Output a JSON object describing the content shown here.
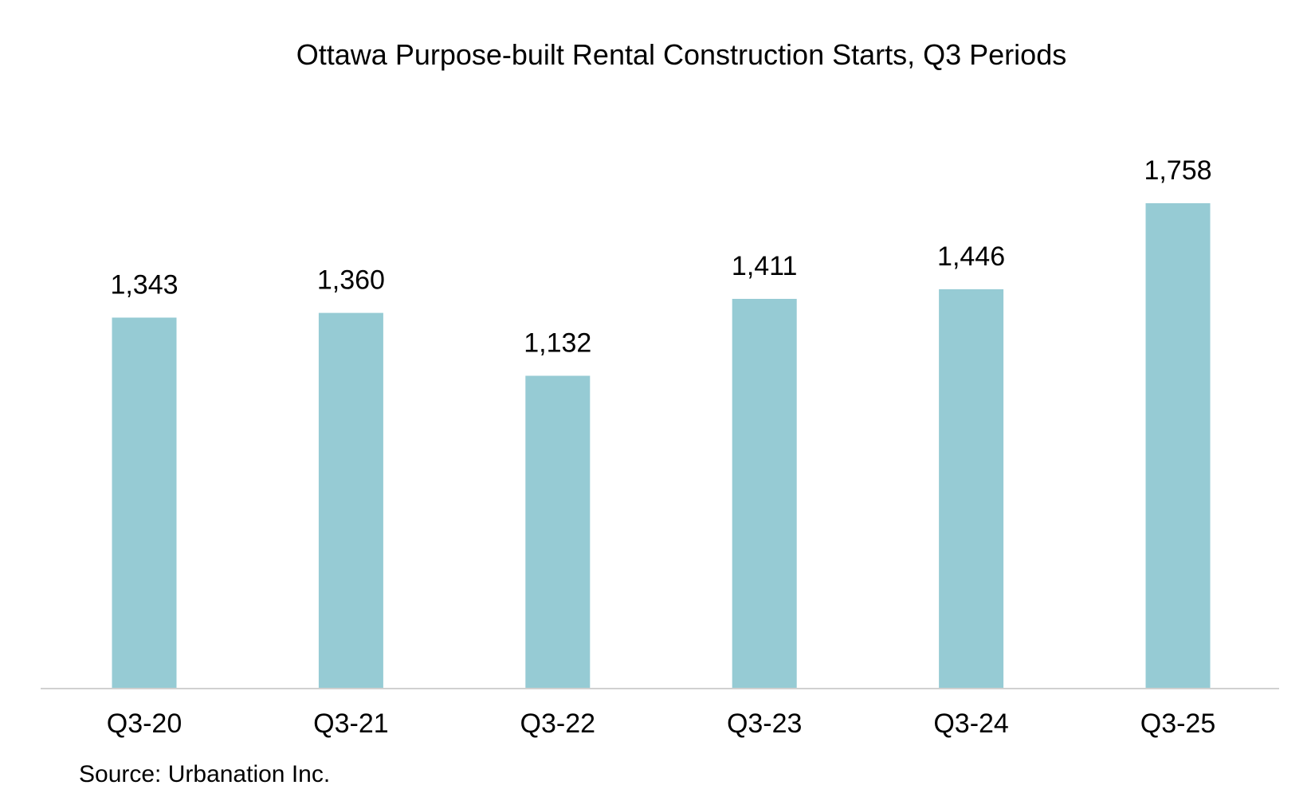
{
  "chart_data": {
    "type": "bar",
    "title": "Ottawa Purpose-built Rental Construction Starts, Q3 Periods",
    "categories": [
      "Q3-20",
      "Q3-21",
      "Q3-22",
      "Q3-23",
      "Q3-24",
      "Q3-25"
    ],
    "values": [
      1343,
      1360,
      1132,
      1411,
      1446,
      1758
    ],
    "data_labels": [
      "1,343",
      "1,360",
      "1,132",
      "1,411",
      "1,446",
      "1,758"
    ],
    "xlabel": "",
    "ylabel": "",
    "ylim": [
      0,
      1758
    ],
    "grid": false,
    "legend": "none",
    "bar_color": "#96cbd4",
    "axis_color": "#d0d0d0",
    "source": "Source: Urbanation Inc."
  }
}
